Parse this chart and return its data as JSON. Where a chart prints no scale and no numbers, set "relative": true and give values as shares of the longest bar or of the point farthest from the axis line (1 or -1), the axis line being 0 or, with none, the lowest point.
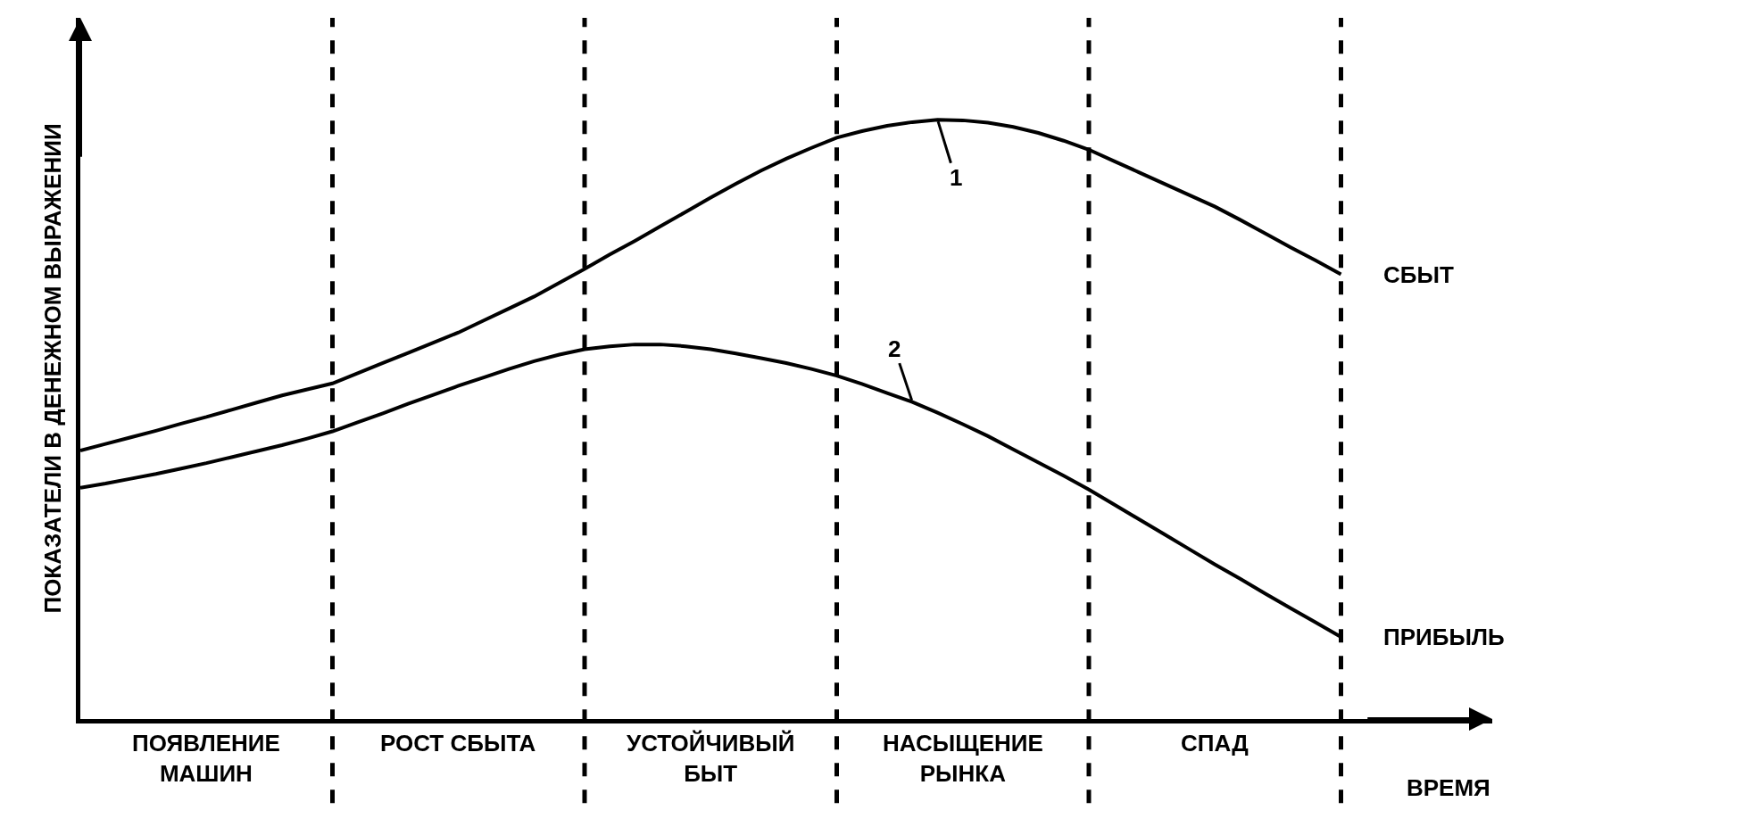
{
  "chart_data": {
    "type": "line",
    "relative": true,
    "xlabel": "ВРЕМЯ",
    "ylabel": "ПОКАЗАТЕЛИ В ДЕНЕЖНОМ ВЫРАЖЕНИИ",
    "grid": "x",
    "legend": false,
    "marker": "none",
    "line_style": "solid",
    "categories": [
      null,
      null,
      null,
      null,
      null,
      null,
      null,
      null,
      null,
      null,
      null,
      null,
      null,
      null,
      null,
      null,
      null,
      null,
      null,
      null,
      null,
      null,
      null,
      null,
      null,
      null,
      null,
      null,
      null,
      null,
      null,
      null,
      null,
      null,
      null,
      null,
      null,
      null,
      null,
      null,
      null,
      null,
      null,
      null,
      null,
      null,
      null,
      null,
      null,
      null,
      null,
      null,
      null,
      null,
      null,
      null,
      null
    ],
    "series": [
      {
        "name": "СБЫТ",
        "color": "#000000",
        "values": [
          0.448,
          0.459,
          0.47,
          0.481,
          0.493,
          0.504,
          0.516,
          0.528,
          0.54,
          0.55,
          0.56,
          0.577,
          0.594,
          0.611,
          0.628,
          0.645,
          0.665,
          0.685,
          0.705,
          0.728,
          0.751,
          0.775,
          0.798,
          0.822,
          0.846,
          0.87,
          0.893,
          0.915,
          0.935,
          0.953,
          0.97,
          0.981,
          0.99,
          0.996,
          1.0,
          0.999,
          0.995,
          0.988,
          0.978,
          0.965,
          0.95,
          0.931,
          0.912,
          0.893,
          0.874,
          0.855,
          0.833,
          0.81,
          0.787,
          0.765,
          0.742,
          null,
          null,
          null,
          null,
          null,
          null
        ]
      },
      {
        "name": "ПРИБЫЛЬ",
        "color": "#000000",
        "values": [
          0.386,
          0.393,
          0.401,
          0.409,
          0.418,
          0.427,
          0.437,
          0.447,
          0.457,
          0.468,
          0.48,
          0.495,
          0.51,
          0.526,
          0.541,
          0.556,
          0.57,
          0.584,
          0.597,
          0.608,
          0.617,
          0.622,
          0.625,
          0.625,
          0.622,
          0.617,
          0.61,
          0.602,
          0.594,
          0.584,
          0.573,
          0.559,
          0.544,
          0.529,
          0.511,
          0.492,
          0.472,
          0.45,
          0.428,
          0.406,
          0.383,
          0.358,
          0.333,
          0.308,
          0.283,
          0.258,
          0.234,
          0.209,
          0.185,
          0.161,
          0.137,
          null,
          null,
          null,
          null,
          null,
          null
        ]
      }
    ],
    "annotations": [
      {
        "text": "1",
        "y": 1.0
      },
      {
        "text": "2",
        "y": 0.529
      },
      "ПОЯВЛЕНИЕ МАШИН",
      "РОСТ СБЫТА",
      "УСТОЙЧИВЫЙ БЫТ",
      "НАСЫЩЕНИЕ РЫНКА",
      "СПАД"
    ]
  }
}
